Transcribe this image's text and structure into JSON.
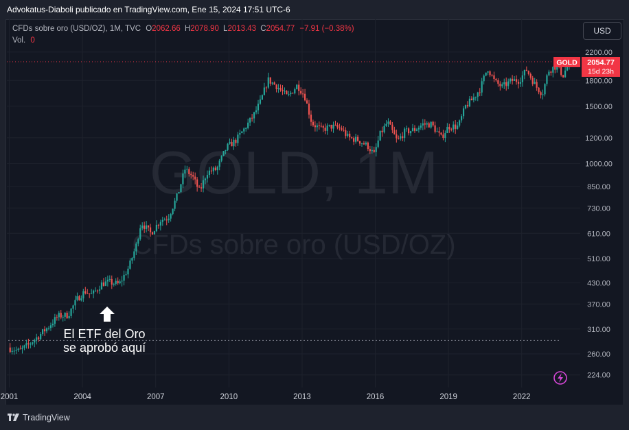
{
  "publisher_line": "Advokatus-Diaboli publicado en TradingView.com, Ene 15, 2024 17:51 UTC-6",
  "legend": {
    "symbol": "CFDs sobre oro (USD/OZ), 1M, TVC",
    "o_label": "O",
    "o_value": "2062.66",
    "h_label": "H",
    "h_value": "2078.90",
    "l_label": "L",
    "l_value": "2013.43",
    "c_label": "C",
    "c_value": "2054.77",
    "change": "−7.91 (−0.38%)",
    "vol_label": "Vol.",
    "vol_value": "0"
  },
  "currency_button": "USD",
  "watermark": {
    "big": "GOLD, 1M",
    "small": "CFDs sobre oro (USD/OZ)"
  },
  "price_tags": {
    "symbol": "GOLD",
    "last_price": "2054.77",
    "countdown": "15d 23h"
  },
  "annotation": {
    "line1": "El ETF del Oro",
    "line2": "se aprobó aquí"
  },
  "brand": "TradingView",
  "colors": {
    "up": "#26a69a",
    "down": "#ef5350",
    "background": "#131722",
    "tag": "#f23645"
  },
  "icons": [
    "lightning-icon",
    "arrow-up-icon",
    "tradingview-logo-icon"
  ],
  "chart_data": {
    "type": "candlestick",
    "title": "CFDs sobre oro (USD/OZ), 1M, TVC",
    "y_scale": "log",
    "ylim": [
      205,
      2400
    ],
    "xlim": [
      2000.9,
      2024.4
    ],
    "x_ticks": [
      2001,
      2004,
      2007,
      2010,
      2013,
      2016,
      2019,
      2022
    ],
    "x_tick_labels": [
      "2001",
      "2004",
      "2007",
      "2010",
      "2013",
      "2016",
      "2019",
      "2022"
    ],
    "y_ticks": [
      224,
      260,
      310,
      370,
      430,
      510,
      610,
      730,
      850,
      1000,
      1200,
      1500,
      1800,
      2200
    ],
    "y_tick_labels": [
      "224.00",
      "260.00",
      "310.00",
      "370.00",
      "430.00",
      "510.00",
      "610.00",
      "730.00",
      "850.00",
      "1000.00",
      "1200.00",
      "1500.00",
      "1800.00",
      "2200.00"
    ],
    "last_price": 2054.77,
    "reference_line_price": 286,
    "close_path": [
      [
        2000.95,
        272
      ],
      [
        2001.4,
        265
      ],
      [
        2001.8,
        278
      ],
      [
        2002.2,
        295
      ],
      [
        2002.6,
        315
      ],
      [
        2003.0,
        340
      ],
      [
        2003.4,
        342
      ],
      [
        2003.8,
        385
      ],
      [
        2004.1,
        405
      ],
      [
        2004.4,
        395
      ],
      [
        2004.8,
        428
      ],
      [
        2005.1,
        432
      ],
      [
        2005.5,
        425
      ],
      [
        2005.9,
        480
      ],
      [
        2006.2,
        560
      ],
      [
        2006.4,
        660
      ],
      [
        2006.8,
        610
      ],
      [
        2007.2,
        670
      ],
      [
        2007.5,
        680
      ],
      [
        2007.9,
        800
      ],
      [
        2008.2,
        960
      ],
      [
        2008.5,
        915
      ],
      [
        2008.8,
        820
      ],
      [
        2009.1,
        940
      ],
      [
        2009.5,
        960
      ],
      [
        2009.9,
        1120
      ],
      [
        2010.3,
        1180
      ],
      [
        2010.7,
        1300
      ],
      [
        2011.0,
        1400
      ],
      [
        2011.3,
        1550
      ],
      [
        2011.6,
        1810
      ],
      [
        2012.0,
        1720
      ],
      [
        2012.4,
        1600
      ],
      [
        2012.8,
        1740
      ],
      [
        2013.1,
        1620
      ],
      [
        2013.4,
        1330
      ],
      [
        2013.8,
        1270
      ],
      [
        2014.2,
        1300
      ],
      [
        2014.6,
        1280
      ],
      [
        2014.9,
        1200
      ],
      [
        2015.3,
        1180
      ],
      [
        2015.7,
        1130
      ],
      [
        2015.95,
        1065
      ],
      [
        2016.2,
        1230
      ],
      [
        2016.5,
        1340
      ],
      [
        2016.9,
        1170
      ],
      [
        2017.2,
        1250
      ],
      [
        2017.6,
        1270
      ],
      [
        2017.95,
        1320
      ],
      [
        2018.3,
        1320
      ],
      [
        2018.7,
        1200
      ],
      [
        2019.0,
        1300
      ],
      [
        2019.4,
        1300
      ],
      [
        2019.7,
        1500
      ],
      [
        2020.0,
        1580
      ],
      [
        2020.3,
        1700
      ],
      [
        2020.6,
        1970
      ],
      [
        2020.9,
        1780
      ],
      [
        2021.2,
        1720
      ],
      [
        2021.6,
        1800
      ],
      [
        2021.9,
        1800
      ],
      [
        2022.2,
        1940
      ],
      [
        2022.6,
        1720
      ],
      [
        2022.85,
        1640
      ],
      [
        2023.1,
        1930
      ],
      [
        2023.4,
        1990
      ],
      [
        2023.7,
        1870
      ],
      [
        2023.95,
        2054.77
      ]
    ]
  }
}
